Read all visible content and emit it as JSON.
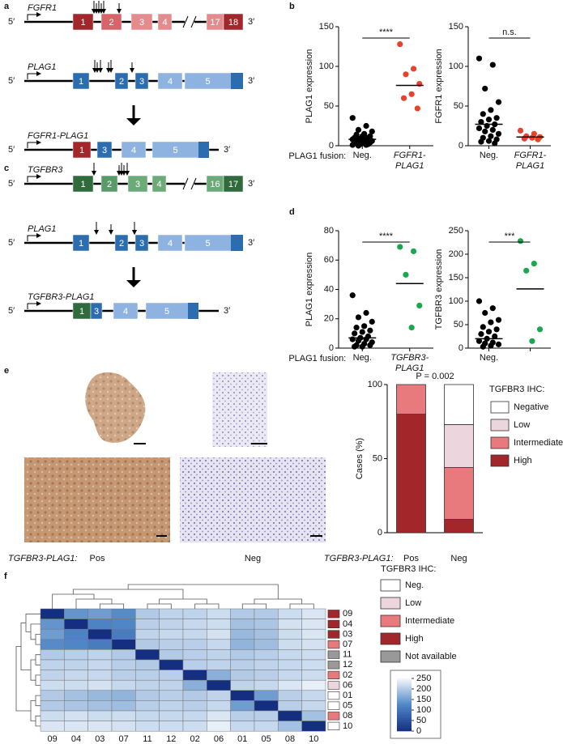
{
  "panel_labels": [
    "a",
    "b",
    "c",
    "d",
    "e",
    "f"
  ],
  "gene_diagrams": {
    "five_prime": "5′",
    "three_prime": "3′",
    "genes": [
      {
        "name": "FGFR1",
        "exons": [
          "1",
          "2",
          "3",
          "4",
          "17",
          "18"
        ]
      },
      {
        "name": "PLAG1",
        "exons": [
          "1",
          "2",
          "3",
          "4",
          "5"
        ]
      },
      {
        "name": "FGFR1-PLAG1",
        "exons": [
          "1",
          "3",
          "4",
          "5"
        ]
      },
      {
        "name": "TGFBR3",
        "exons": [
          "1",
          "2",
          "3",
          "4",
          "16",
          "17"
        ]
      },
      {
        "name": "PLAG1",
        "exons": [
          "1",
          "2",
          "3",
          "4",
          "5"
        ]
      },
      {
        "name": "TGFBR3-PLAG1",
        "exons": [
          "1",
          "3",
          "4",
          "5"
        ]
      }
    ]
  },
  "ihc_images": {
    "row_label": "TGFBR3-PLAG1:",
    "labels": [
      "Pos",
      "Neg"
    ]
  },
  "chart_data": [
    {
      "type": "strip",
      "ylabel": "PLAG1 expression",
      "xlabel": "PLAG1 fusion:",
      "annotation": "****",
      "categories": [
        "Neg.",
        "FGFR1-PLAG1"
      ],
      "ylim": [
        0,
        150
      ],
      "yticks": [
        0,
        50,
        100,
        150
      ],
      "groups": [
        {
          "color": "#000000",
          "mean": 8,
          "values": [
            35,
            25,
            20,
            18,
            15,
            14,
            12,
            12,
            10,
            10,
            9,
            8,
            8,
            7,
            6,
            5,
            5,
            4,
            3,
            3,
            2,
            2,
            1,
            1,
            0
          ]
        },
        {
          "color": "#e8412c",
          "mean": 76,
          "values": [
            128,
            97,
            90,
            78,
            65,
            60,
            47
          ]
        }
      ]
    },
    {
      "type": "strip",
      "ylabel": "FGFR1 expression",
      "annotation": "n.s.",
      "categories": [
        "Neg.",
        "FGFR1-PLAG1"
      ],
      "ylim": [
        0,
        150
      ],
      "yticks": [
        0,
        50,
        100,
        150
      ],
      "groups": [
        {
          "color": "#000000",
          "mean": 27,
          "values": [
            110,
            102,
            72,
            55,
            45,
            40,
            35,
            33,
            30,
            27,
            25,
            22,
            20,
            18,
            15,
            12,
            10,
            8,
            6,
            5,
            3
          ]
        },
        {
          "color": "#e8412c",
          "mean": 11,
          "values": [
            19,
            15,
            12,
            11,
            10,
            9,
            8
          ]
        }
      ]
    },
    {
      "type": "strip",
      "ylabel": "PLAG1 expression",
      "xlabel": "PLAG1 fusion:",
      "annotation": "****",
      "categories": [
        "Neg.",
        "TGFBR3-PLAG1"
      ],
      "ylim": [
        0,
        80
      ],
      "yticks": [
        0,
        20,
        40,
        60,
        80
      ],
      "groups": [
        {
          "color": "#000000",
          "mean": 7,
          "values": [
            36,
            24,
            21,
            18,
            15,
            14,
            12,
            11,
            10,
            8,
            7,
            6,
            6,
            5,
            4,
            3,
            2,
            2,
            1,
            1
          ]
        },
        {
          "color": "#1aa84e",
          "mean": 44,
          "values": [
            69,
            66,
            50,
            29,
            14
          ]
        }
      ]
    },
    {
      "type": "strip",
      "ylabel": "TGFBR3 expression",
      "annotation": "***",
      "categories": [
        "Neg.",
        null
      ],
      "ylim": [
        0,
        250
      ],
      "yticks": [
        0,
        50,
        100,
        150,
        200,
        250
      ],
      "groups": [
        {
          "color": "#000000",
          "mean": 20,
          "values": [
            100,
            85,
            75,
            60,
            55,
            45,
            40,
            35,
            30,
            25,
            20,
            15,
            12,
            10,
            8,
            5,
            3
          ]
        },
        {
          "color": "#1aa84e",
          "mean": 126,
          "values": [
            228,
            180,
            165,
            40,
            15
          ]
        }
      ]
    },
    {
      "type": "bar",
      "stacked": true,
      "ylabel": "Cases (%)",
      "xlabel": "TGFBR3-PLAG1:",
      "annotation": "P = 0.002",
      "legend_title": "TGFBR3 IHC:",
      "categories": [
        "Pos",
        "Neg"
      ],
      "ylim": [
        0,
        100
      ],
      "yticks": [
        0,
        50,
        100
      ],
      "series": [
        {
          "name": "High",
          "color": "#a3262a",
          "values": [
            80,
            9
          ]
        },
        {
          "name": "Intermediate",
          "color": "#e8797c",
          "values": [
            20,
            35
          ]
        },
        {
          "name": "Low",
          "color": "#ecd5dd",
          "values": [
            0,
            29
          ]
        },
        {
          "name": "Negative",
          "color": "#ffffff",
          "values": [
            0,
            27
          ]
        }
      ]
    },
    {
      "type": "heatmap",
      "legend_title": "TGFBR3 IHC:",
      "labels": [
        "09",
        "04",
        "03",
        "07",
        "11",
        "12",
        "02",
        "06",
        "01",
        "05",
        "08",
        "10"
      ],
      "zlim": [
        0,
        250
      ],
      "zticks": [
        0,
        50,
        100,
        150,
        200,
        250
      ],
      "colors": [
        "#142f80",
        "#4f86c6",
        "#f4f8fc"
      ],
      "matrix": [
        [
          0,
          140,
          150,
          130,
          200,
          210,
          210,
          220,
          200,
          200,
          220,
          230
        ],
        [
          140,
          0,
          120,
          125,
          205,
          210,
          215,
          220,
          190,
          195,
          225,
          230
        ],
        [
          150,
          120,
          0,
          110,
          210,
          215,
          215,
          225,
          180,
          190,
          220,
          230
        ],
        [
          130,
          125,
          110,
          0,
          200,
          205,
          205,
          215,
          175,
          185,
          220,
          225
        ],
        [
          200,
          205,
          210,
          200,
          0,
          200,
          205,
          210,
          200,
          205,
          215,
          220
        ],
        [
          210,
          210,
          215,
          205,
          200,
          0,
          205,
          210,
          205,
          210,
          215,
          220
        ],
        [
          210,
          215,
          215,
          205,
          205,
          205,
          0,
          170,
          200,
          205,
          215,
          220
        ],
        [
          220,
          220,
          225,
          215,
          210,
          210,
          170,
          0,
          210,
          215,
          230,
          240
        ],
        [
          200,
          190,
          180,
          175,
          200,
          205,
          200,
          210,
          0,
          150,
          205,
          215
        ],
        [
          200,
          195,
          190,
          185,
          205,
          210,
          205,
          215,
          150,
          0,
          205,
          215
        ],
        [
          220,
          225,
          220,
          220,
          215,
          215,
          215,
          230,
          205,
          205,
          0,
          190
        ],
        [
          230,
          230,
          230,
          225,
          220,
          220,
          220,
          240,
          215,
          215,
          190,
          0
        ]
      ],
      "row_annotation": [
        "High",
        "High",
        "High",
        "Intermediate",
        "Not available",
        "Not available",
        "Intermediate",
        "Low",
        "Neg.",
        "Neg.",
        "Intermediate",
        "Neg."
      ],
      "annotation_legend": [
        {
          "name": "Neg.",
          "color": "#ffffff"
        },
        {
          "name": "Low",
          "color": "#ecd5dd"
        },
        {
          "name": "Intermediate",
          "color": "#e8797c"
        },
        {
          "name": "High",
          "color": "#a3262a"
        },
        {
          "name": "Not available",
          "color": "#999999"
        }
      ]
    }
  ]
}
